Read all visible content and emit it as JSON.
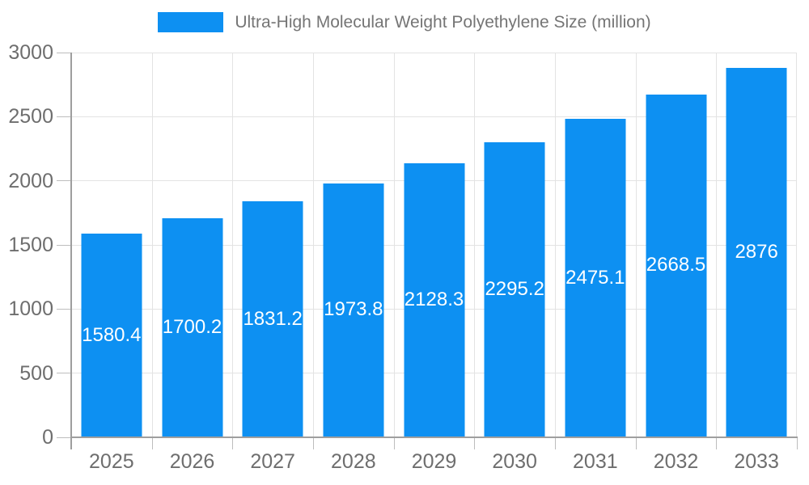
{
  "legend": {
    "label": "Ultra-High Molecular Weight Polyethylene Size (million)"
  },
  "chart_data": {
    "type": "bar",
    "title": "Ultra-High Molecular Weight Polyethylene Size (million)",
    "series_name": "Ultra-High Molecular Weight Polyethylene Size (million)",
    "categories": [
      "2025",
      "2026",
      "2027",
      "2028",
      "2029",
      "2030",
      "2031",
      "2032",
      "2033"
    ],
    "values": [
      1580.4,
      1700.2,
      1831.2,
      1973.8,
      2128.3,
      2295.2,
      2475.1,
      2668.5,
      2876
    ],
    "value_labels": [
      "1580.4",
      "1700.2",
      "1831.2",
      "1973.8",
      "2128.3",
      "2295.2",
      "2475.1",
      "2668.5",
      "2876"
    ],
    "xlabel": "",
    "ylabel": "",
    "ylim": [
      0,
      3000
    ],
    "yticks": [
      0,
      500,
      1000,
      1500,
      2000,
      2500,
      3000
    ],
    "grid": true,
    "legend_position": "top",
    "colors": {
      "bar": "#0D90F2",
      "value_label": "#FFFFFF",
      "gridline": "#E3E3E3",
      "axis_line": "#9E9E9E",
      "tick_mark": "#BDBDBD",
      "tick_label": "#6E6E6E",
      "title": "#757575",
      "background": "#FFFFFF"
    }
  }
}
